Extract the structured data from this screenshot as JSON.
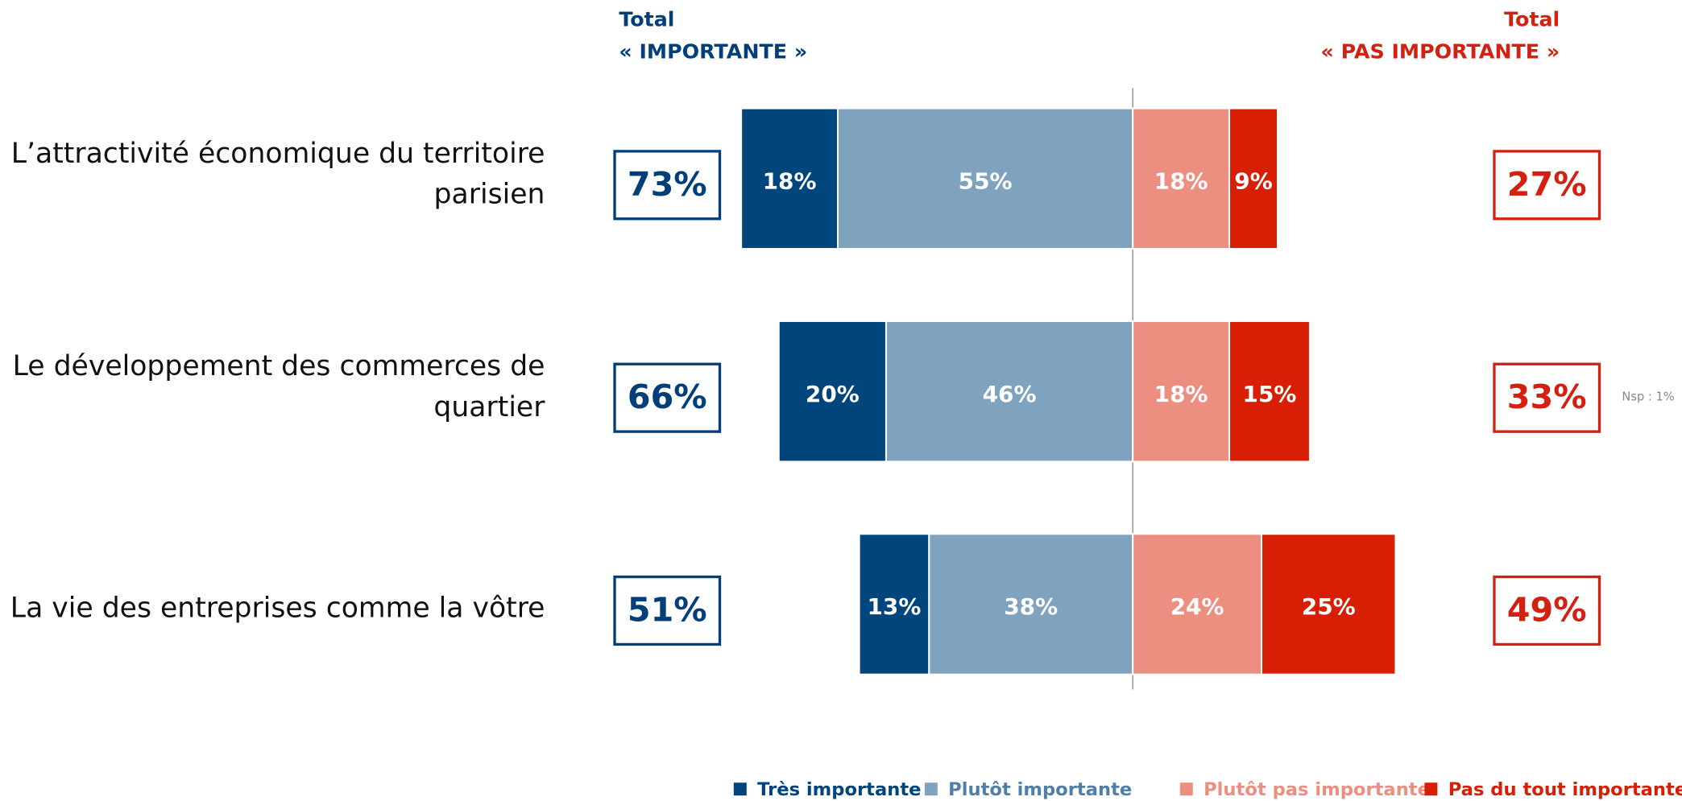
{
  "chart_data": {
    "type": "diverging_bar",
    "categories": [
      [
        "L’attractivité économique du territoire",
        "parisien"
      ],
      [
        "Le développement des commerces de",
        "quartier"
      ],
      [
        "La vie des entreprises comme la vôtre"
      ]
    ],
    "series": [
      {
        "name": "Très importante",
        "color": "#00457c",
        "side": "left",
        "values": [
          18,
          20,
          13
        ],
        "value_labels": [
          "18%",
          "20%",
          "13%"
        ]
      },
      {
        "name": "Plutôt importante",
        "color": "#7fa3bf",
        "side": "left",
        "values": [
          55,
          46,
          38
        ],
        "value_labels": [
          "55%",
          "46%",
          "38%"
        ]
      },
      {
        "name": "Plutôt pas importante",
        "color": "#ec8e80",
        "side": "right",
        "values": [
          18,
          18,
          24
        ],
        "value_labels": [
          "18%",
          "18%",
          "24%"
        ]
      },
      {
        "name": "Pas du tout importante",
        "color": "#d81e05",
        "side": "right",
        "values": [
          9,
          15,
          25
        ],
        "value_labels": [
          "9%",
          "15%",
          "25%"
        ]
      }
    ],
    "totals": {
      "left": {
        "title": [
          "Total",
          "« IMPORTANTE »"
        ],
        "color": "#003f7a",
        "values": [
          73,
          66,
          51
        ],
        "value_labels": [
          "73%",
          "66%",
          "51%"
        ]
      },
      "right": {
        "title": [
          "Total",
          "« PAS IMPORTANTE »"
        ],
        "color": "#d42010",
        "values": [
          27,
          33,
          49
        ],
        "value_labels": [
          "27%",
          "33%",
          "49%"
        ]
      }
    },
    "annotations": [
      {
        "row": 1,
        "text": "Nsp : 1%"
      }
    ],
    "legend": true
  }
}
